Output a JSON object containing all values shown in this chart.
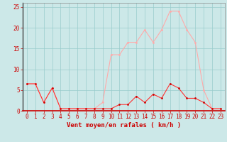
{
  "x": [
    0,
    1,
    2,
    3,
    4,
    5,
    6,
    7,
    8,
    9,
    10,
    11,
    12,
    13,
    14,
    15,
    16,
    17,
    18,
    19,
    20,
    21,
    22,
    23
  ],
  "y_avg": [
    6.5,
    6.5,
    2.0,
    5.5,
    0.5,
    0.5,
    0.5,
    0.5,
    0.5,
    0.5,
    0.5,
    1.5,
    1.5,
    3.5,
    2.0,
    4.0,
    3.0,
    6.5,
    5.5,
    3.0,
    3.0,
    2.0,
    0.5,
    0.5
  ],
  "y_gust": [
    6.5,
    6.5,
    2.0,
    5.5,
    0.5,
    0.5,
    0.5,
    0.5,
    0.5,
    2.0,
    13.5,
    13.5,
    16.5,
    16.5,
    19.5,
    16.5,
    19.5,
    24.0,
    24.0,
    19.5,
    16.5,
    5.0,
    0.5,
    0.5
  ],
  "bg_color": "#cce8e8",
  "grid_color": "#99cccc",
  "line_color_avg": "#ff3333",
  "line_color_gust": "#ffaaaa",
  "marker_color_avg": "#cc0000",
  "marker_color_gust": "#ffaaaa",
  "xlabel": "Vent moyen/en rafales ( km/h )",
  "ylim": [
    0,
    26
  ],
  "yticks": [
    0,
    5,
    10,
    15,
    20,
    25
  ],
  "xlim": [
    -0.5,
    23.5
  ],
  "label_fontsize": 6.5,
  "tick_fontsize": 5.5
}
